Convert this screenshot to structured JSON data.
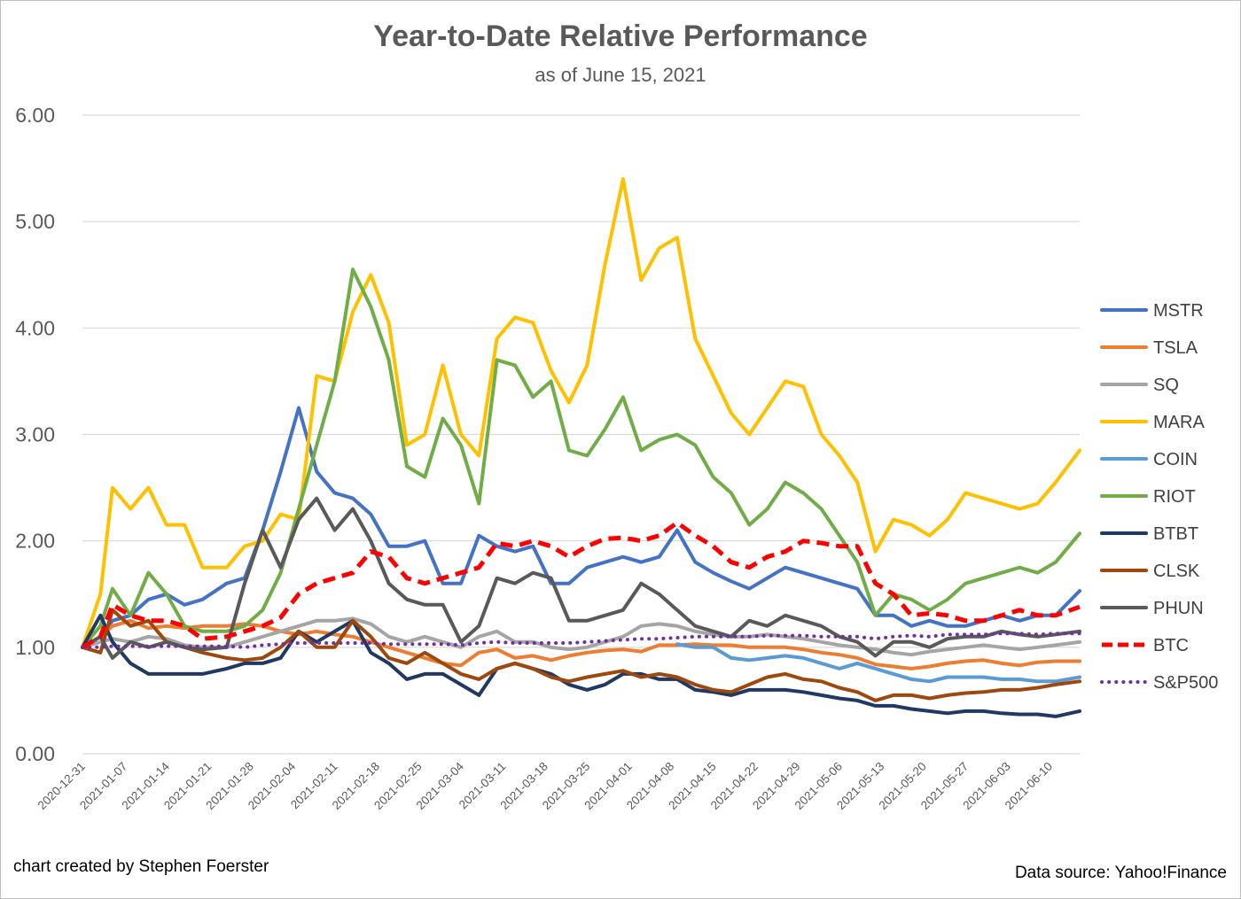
{
  "chart_data": {
    "type": "line",
    "title": "Year-to-Date Relative Performance",
    "subtitle": "as of June 15, 2021",
    "xlabel": "",
    "ylabel": "",
    "ylim": [
      0,
      6
    ],
    "ytick_values": [
      0,
      1,
      2,
      3,
      4,
      5,
      6
    ],
    "ytick_labels": [
      "0.00",
      "1.00",
      "2.00",
      "3.00",
      "4.00",
      "5.00",
      "6.00"
    ],
    "grid": true,
    "legend_position": "right",
    "xtick_labels": [
      "2020-12-31",
      "2021-01-07",
      "2021-01-14",
      "2021-01-21",
      "2021-01-28",
      "2021-02-04",
      "2021-02-11",
      "2021-02-18",
      "2021-02-25",
      "2021-03-04",
      "2021-03-11",
      "2021-03-18",
      "2021-03-25",
      "2021-04-01",
      "2021-04-08",
      "2021-04-15",
      "2021-04-22",
      "2021-04-29",
      "2021-05-06",
      "2021-05-13",
      "2021-05-20",
      "2021-05-27",
      "2021-06-03",
      "2021-06-10"
    ],
    "x_days": [
      0,
      3,
      5,
      8,
      11,
      14,
      17,
      20,
      24,
      27,
      30,
      33,
      36,
      39,
      42,
      45,
      48,
      51,
      54,
      57,
      60,
      63,
      66,
      69,
      72,
      75,
      78,
      81,
      84,
      87,
      90,
      93,
      96,
      99,
      102,
      105,
      108,
      111,
      114,
      117,
      120,
      123,
      126,
      129,
      132,
      135,
      138,
      141,
      144,
      147,
      150,
      153,
      156,
      159,
      162,
      166
    ],
    "series": [
      {
        "name": "MSTR",
        "color": "#4472c4",
        "style": "solid",
        "width": 4,
        "values": [
          1.0,
          1.1,
          1.25,
          1.3,
          1.45,
          1.5,
          1.4,
          1.45,
          1.6,
          1.65,
          2.1,
          2.65,
          3.25,
          2.65,
          2.45,
          2.4,
          2.25,
          1.95,
          1.95,
          2.0,
          1.6,
          1.6,
          2.05,
          1.95,
          1.9,
          1.95,
          1.6,
          1.6,
          1.75,
          1.8,
          1.85,
          1.8,
          1.85,
          2.1,
          1.8,
          1.7,
          1.62,
          1.55,
          1.65,
          1.75,
          1.7,
          1.65,
          1.6,
          1.55,
          1.3,
          1.3,
          1.2,
          1.25,
          1.2,
          1.2,
          1.25,
          1.3,
          1.25,
          1.3,
          1.3,
          1.53
        ]
      },
      {
        "name": "TSLA",
        "color": "#ed7d31",
        "style": "solid",
        "width": 4,
        "values": [
          1.0,
          1.1,
          1.2,
          1.25,
          1.18,
          1.2,
          1.18,
          1.2,
          1.2,
          1.22,
          1.2,
          1.15,
          1.12,
          1.15,
          1.12,
          1.1,
          1.05,
          1.0,
          0.95,
          0.9,
          0.85,
          0.83,
          0.95,
          0.98,
          0.9,
          0.92,
          0.88,
          0.92,
          0.95,
          0.97,
          0.98,
          0.96,
          1.02,
          1.02,
          1.03,
          1.02,
          1.02,
          1.0,
          1.0,
          1.0,
          0.98,
          0.95,
          0.93,
          0.9,
          0.84,
          0.82,
          0.8,
          0.82,
          0.85,
          0.87,
          0.88,
          0.85,
          0.83,
          0.86,
          0.87,
          0.87
        ]
      },
      {
        "name": "SQ",
        "color": "#a5a5a5",
        "style": "solid",
        "width": 4,
        "values": [
          1.0,
          1.05,
          1.08,
          1.05,
          1.1,
          1.08,
          1.02,
          1.0,
          1.0,
          1.05,
          1.1,
          1.15,
          1.2,
          1.25,
          1.25,
          1.27,
          1.22,
          1.1,
          1.05,
          1.1,
          1.05,
          1.0,
          1.1,
          1.15,
          1.05,
          1.05,
          1.0,
          0.98,
          1.0,
          1.05,
          1.1,
          1.2,
          1.22,
          1.2,
          1.15,
          1.12,
          1.1,
          1.1,
          1.12,
          1.1,
          1.08,
          1.05,
          1.02,
          1.0,
          0.98,
          0.95,
          0.93,
          0.96,
          0.98,
          1.0,
          1.02,
          1.0,
          0.98,
          1.0,
          1.02,
          1.05
        ]
      },
      {
        "name": "MARA",
        "color": "#ffc000",
        "style": "solid",
        "width": 4,
        "values": [
          1.0,
          1.5,
          2.5,
          2.3,
          2.5,
          2.15,
          2.15,
          1.75,
          1.75,
          1.95,
          2.0,
          2.25,
          2.2,
          3.55,
          3.5,
          4.15,
          4.5,
          4.05,
          2.9,
          3.0,
          3.65,
          3.0,
          2.8,
          3.9,
          4.1,
          4.05,
          3.6,
          3.3,
          3.65,
          4.6,
          5.4,
          4.45,
          4.75,
          4.85,
          3.9,
          3.55,
          3.2,
          3.0,
          3.25,
          3.5,
          3.45,
          3.0,
          2.8,
          2.55,
          1.9,
          2.2,
          2.15,
          2.05,
          2.2,
          2.45,
          2.4,
          2.35,
          2.3,
          2.35,
          2.55,
          2.85
        ]
      },
      {
        "name": "COIN",
        "color": "#5b9bd5",
        "style": "solid",
        "width": 4,
        "values": [
          null,
          null,
          null,
          null,
          null,
          null,
          null,
          null,
          null,
          null,
          null,
          null,
          null,
          null,
          null,
          null,
          null,
          null,
          null,
          null,
          null,
          null,
          null,
          null,
          null,
          null,
          null,
          null,
          null,
          null,
          null,
          null,
          null,
          1.03,
          1.0,
          1.0,
          0.9,
          0.88,
          0.9,
          0.92,
          0.9,
          0.85,
          0.8,
          0.85,
          0.8,
          0.75,
          0.7,
          0.68,
          0.72,
          0.72,
          0.72,
          0.7,
          0.7,
          0.68,
          0.68,
          0.72
        ]
      },
      {
        "name": "RIOT",
        "color": "#70ad47",
        "style": "solid",
        "width": 4,
        "values": [
          1.0,
          1.2,
          1.55,
          1.3,
          1.7,
          1.5,
          1.2,
          1.15,
          1.15,
          1.2,
          1.35,
          1.7,
          2.3,
          2.9,
          3.5,
          4.55,
          4.2,
          3.7,
          2.7,
          2.6,
          3.15,
          2.9,
          2.35,
          3.7,
          3.65,
          3.35,
          3.5,
          2.85,
          2.8,
          3.05,
          3.35,
          2.85,
          2.95,
          3.0,
          2.9,
          2.6,
          2.45,
          2.15,
          2.3,
          2.55,
          2.45,
          2.3,
          2.05,
          1.8,
          1.3,
          1.5,
          1.45,
          1.35,
          1.45,
          1.6,
          1.65,
          1.7,
          1.75,
          1.7,
          1.8,
          2.07
        ]
      },
      {
        "name": "BTBT",
        "color": "#203864",
        "style": "solid",
        "width": 4,
        "values": [
          1.0,
          1.3,
          1.05,
          0.85,
          0.75,
          0.75,
          0.75,
          0.75,
          0.8,
          0.85,
          0.85,
          0.9,
          1.15,
          1.05,
          1.15,
          1.25,
          0.95,
          0.85,
          0.7,
          0.75,
          0.75,
          0.65,
          0.55,
          0.8,
          0.85,
          0.8,
          0.75,
          0.65,
          0.6,
          0.65,
          0.75,
          0.75,
          0.7,
          0.7,
          0.6,
          0.58,
          0.55,
          0.6,
          0.6,
          0.6,
          0.58,
          0.55,
          0.52,
          0.5,
          0.45,
          0.45,
          0.42,
          0.4,
          0.38,
          0.4,
          0.4,
          0.38,
          0.37,
          0.37,
          0.35,
          0.4
        ]
      },
      {
        "name": "CLSK",
        "color": "#9e480e",
        "style": "solid",
        "width": 4,
        "values": [
          1.0,
          0.95,
          1.35,
          1.2,
          1.25,
          1.05,
          1.0,
          0.95,
          0.9,
          0.88,
          0.9,
          1.0,
          1.15,
          1.0,
          1.0,
          1.25,
          1.1,
          0.9,
          0.85,
          0.95,
          0.85,
          0.75,
          0.7,
          0.8,
          0.85,
          0.8,
          0.72,
          0.68,
          0.72,
          0.75,
          0.78,
          0.72,
          0.75,
          0.72,
          0.65,
          0.6,
          0.58,
          0.65,
          0.72,
          0.75,
          0.7,
          0.68,
          0.62,
          0.58,
          0.5,
          0.55,
          0.55,
          0.52,
          0.55,
          0.57,
          0.58,
          0.6,
          0.6,
          0.62,
          0.65,
          0.68
        ]
      },
      {
        "name": "PHUN",
        "color": "#595959",
        "style": "solid",
        "width": 4,
        "values": [
          1.0,
          1.1,
          0.9,
          1.05,
          1.0,
          1.05,
          1.0,
          0.98,
          1.0,
          1.6,
          2.1,
          1.75,
          2.2,
          2.4,
          2.1,
          2.3,
          2.0,
          1.6,
          1.45,
          1.4,
          1.4,
          1.05,
          1.2,
          1.65,
          1.6,
          1.7,
          1.65,
          1.25,
          1.25,
          1.3,
          1.35,
          1.6,
          1.5,
          1.35,
          1.2,
          1.15,
          1.1,
          1.25,
          1.2,
          1.3,
          1.25,
          1.2,
          1.1,
          1.05,
          0.92,
          1.05,
          1.05,
          1.0,
          1.08,
          1.1,
          1.1,
          1.15,
          1.12,
          1.1,
          1.12,
          1.15
        ]
      },
      {
        "name": "BTC",
        "color": "#ff0000",
        "style": "dashed",
        "width": 5,
        "values": [
          1.0,
          1.1,
          1.4,
          1.3,
          1.25,
          1.25,
          1.2,
          1.08,
          1.1,
          1.15,
          1.2,
          1.28,
          1.5,
          1.6,
          1.65,
          1.7,
          1.9,
          1.85,
          1.65,
          1.6,
          1.65,
          1.7,
          1.75,
          1.98,
          1.95,
          2.0,
          1.95,
          1.85,
          1.95,
          2.02,
          2.03,
          2.0,
          2.05,
          2.17,
          2.05,
          1.95,
          1.8,
          1.75,
          1.85,
          1.9,
          2.0,
          1.98,
          1.95,
          1.95,
          1.6,
          1.5,
          1.3,
          1.32,
          1.3,
          1.25,
          1.25,
          1.3,
          1.35,
          1.3,
          1.3,
          1.38
        ]
      },
      {
        "name": "S&P500",
        "color": "#7030a0",
        "style": "dotted",
        "width": 4,
        "values": [
          1.0,
          1.0,
          1.01,
          1.01,
          1.01,
          1.01,
          1.01,
          1.01,
          1.01,
          1.0,
          1.02,
          1.03,
          1.04,
          1.04,
          1.04,
          1.04,
          1.04,
          1.03,
          1.03,
          1.03,
          1.03,
          1.02,
          1.04,
          1.05,
          1.04,
          1.04,
          1.04,
          1.04,
          1.05,
          1.06,
          1.07,
          1.08,
          1.08,
          1.09,
          1.1,
          1.1,
          1.1,
          1.1,
          1.11,
          1.11,
          1.11,
          1.1,
          1.1,
          1.1,
          1.08,
          1.1,
          1.11,
          1.1,
          1.12,
          1.12,
          1.12,
          1.13,
          1.13,
          1.12,
          1.13,
          1.13
        ]
      }
    ]
  },
  "footer": {
    "credit": "chart created by Stephen Foerster",
    "source": "Data source: Yahoo!Finance"
  }
}
